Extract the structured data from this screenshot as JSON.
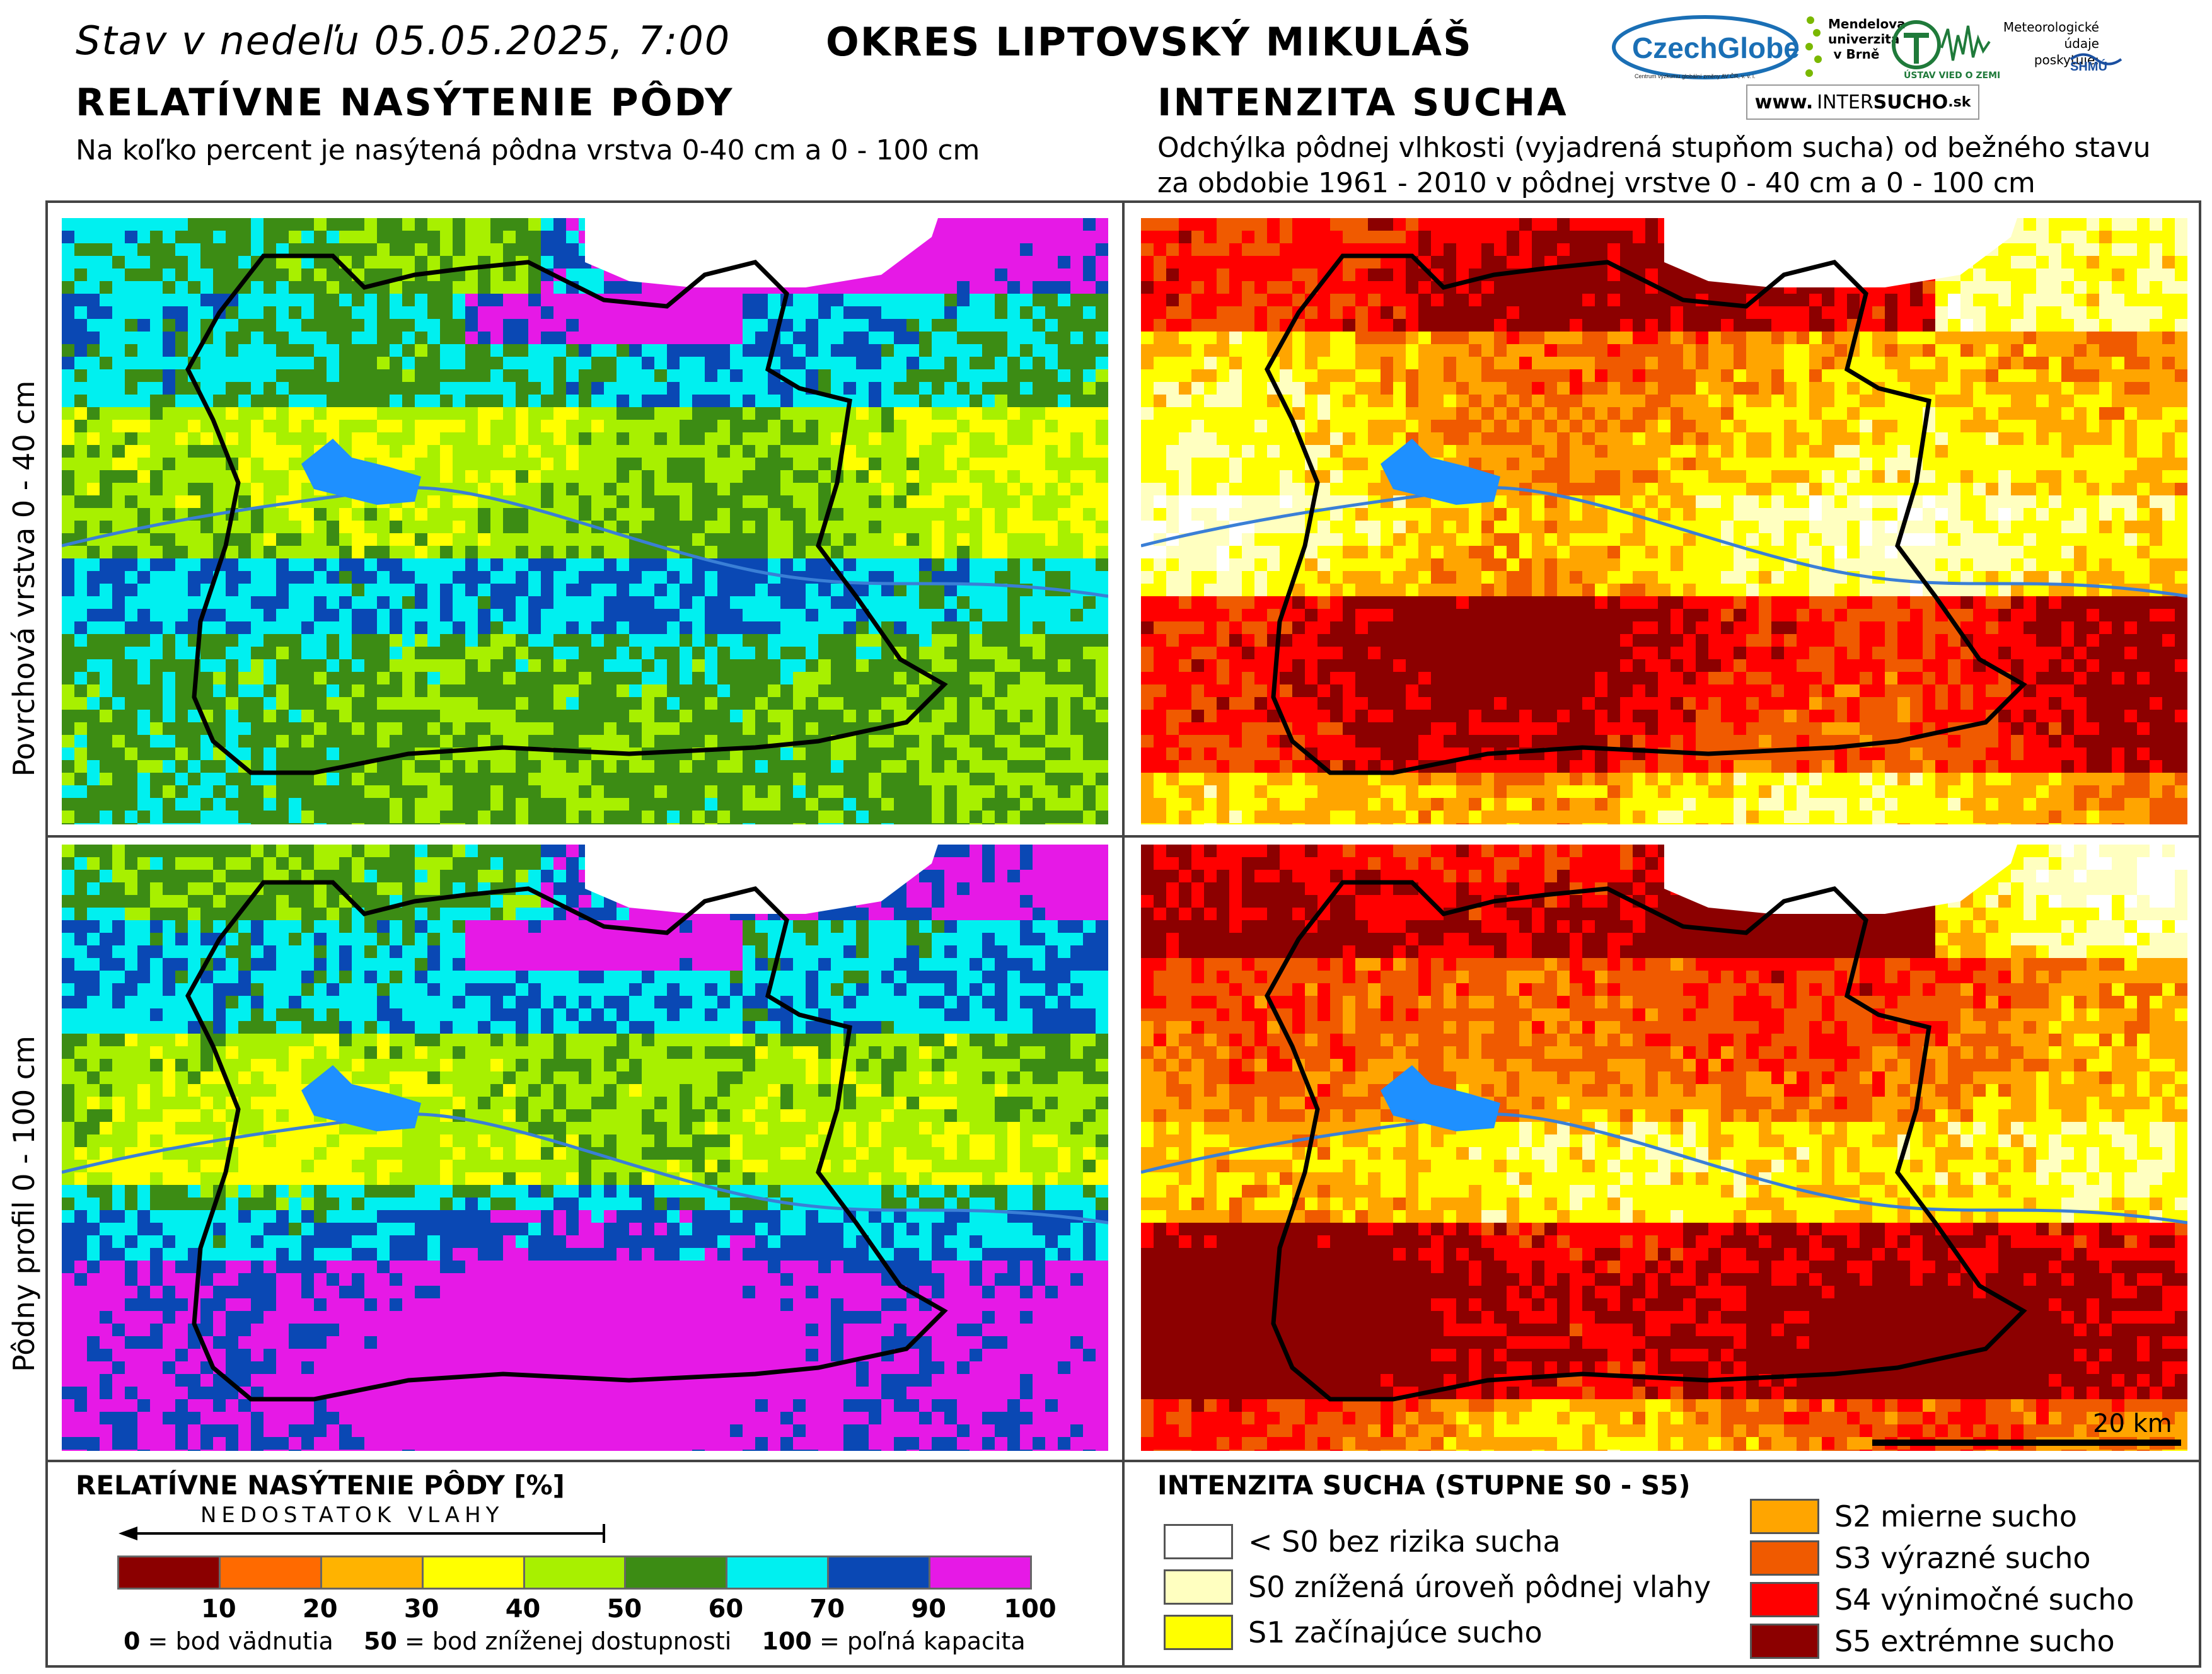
{
  "header": {
    "title": "Stav v nedeľu 05.05.2025, 7:00",
    "district": "OKRES  LIPTOVSKÝ MIKULÁŠ"
  },
  "logos": {
    "czechglobe": "CzechGlobe",
    "czechglobe_sub": "Centrum výzkumu globální změny AV ČR, v. v. i.",
    "mendel": "Mendelova univerzita v Brně",
    "ustav": "ÚSTAV VIED O ZEMI",
    "meteo": "Meteorologické údaje poskytuje:",
    "shmu": "SHMÚ",
    "intersucho_prefix": "www.",
    "intersucho_main": "INTER",
    "intersucho_bold": "SUCHO",
    "intersucho_suffix": ".sk"
  },
  "left_section": {
    "heading": "RELATÍVNE NASÝTENIE PÔDY",
    "subtitle": "Na koľko percent je nasýtená pôdna vrstva 0-40 cm a 0 - 100 cm"
  },
  "right_section": {
    "heading": "INTENZITA SUCHA",
    "subtitle_line1": "Odchýlka pôdnej vlhkosti (vyjadrená stupňom sucha) od bežného stavu",
    "subtitle_line2": "za obdobie 1961 - 2010 v pôdnej vrstve 0 - 40 cm a 0 - 100 cm"
  },
  "row_labels": {
    "top": "Povrchová vrstva 0 - 40 cm",
    "bottom": "Pôdny profil 0 - 100 cm"
  },
  "scale_bar": {
    "label": "20 km"
  },
  "saturation_legend": {
    "title": "RELATÍVNE NASÝTENIE PÔDY [%]",
    "arrow_label": "NEDOSTATOK VLAHY",
    "bins": [
      {
        "color": "#8b0000"
      },
      {
        "color": "#ff6a00"
      },
      {
        "color": "#ffb300"
      },
      {
        "color": "#ffff00"
      },
      {
        "color": "#a8f000"
      },
      {
        "color": "#3c8c14"
      },
      {
        "color": "#00f0f0"
      },
      {
        "color": "#0a48b4"
      },
      {
        "color": "#e619e6"
      }
    ],
    "ticks": [
      "10",
      "20",
      "30",
      "40",
      "50",
      "60",
      "70",
      "90",
      "100"
    ],
    "note_0_bold": "0",
    "note_0": " = bod vädnutia",
    "note_50_bold": "50",
    "note_50": " = bod zníženej dostupnosti",
    "note_100_bold": "100",
    "note_100": " = poľná kapacita"
  },
  "drought_legend": {
    "title": "INTENZITA SUCHA (STUPNE S0 - S5)",
    "items": [
      {
        "label": "< S0 bez rizika sucha",
        "color": "#ffffff"
      },
      {
        "label": "S0 znížená úroveň pôdnej vlahy",
        "color": "#ffffc0"
      },
      {
        "label": "S1 začínajúce sucho",
        "color": "#ffff00"
      },
      {
        "label": "S2 mierne sucho",
        "color": "#ffa500"
      },
      {
        "label": "S3 výrazné sucho",
        "color": "#f05a00"
      },
      {
        "label": "S4 výnimočné sucho",
        "color": "#ff0000"
      },
      {
        "label": "S5 extrémne sucho",
        "color": "#8c0000"
      }
    ]
  }
}
